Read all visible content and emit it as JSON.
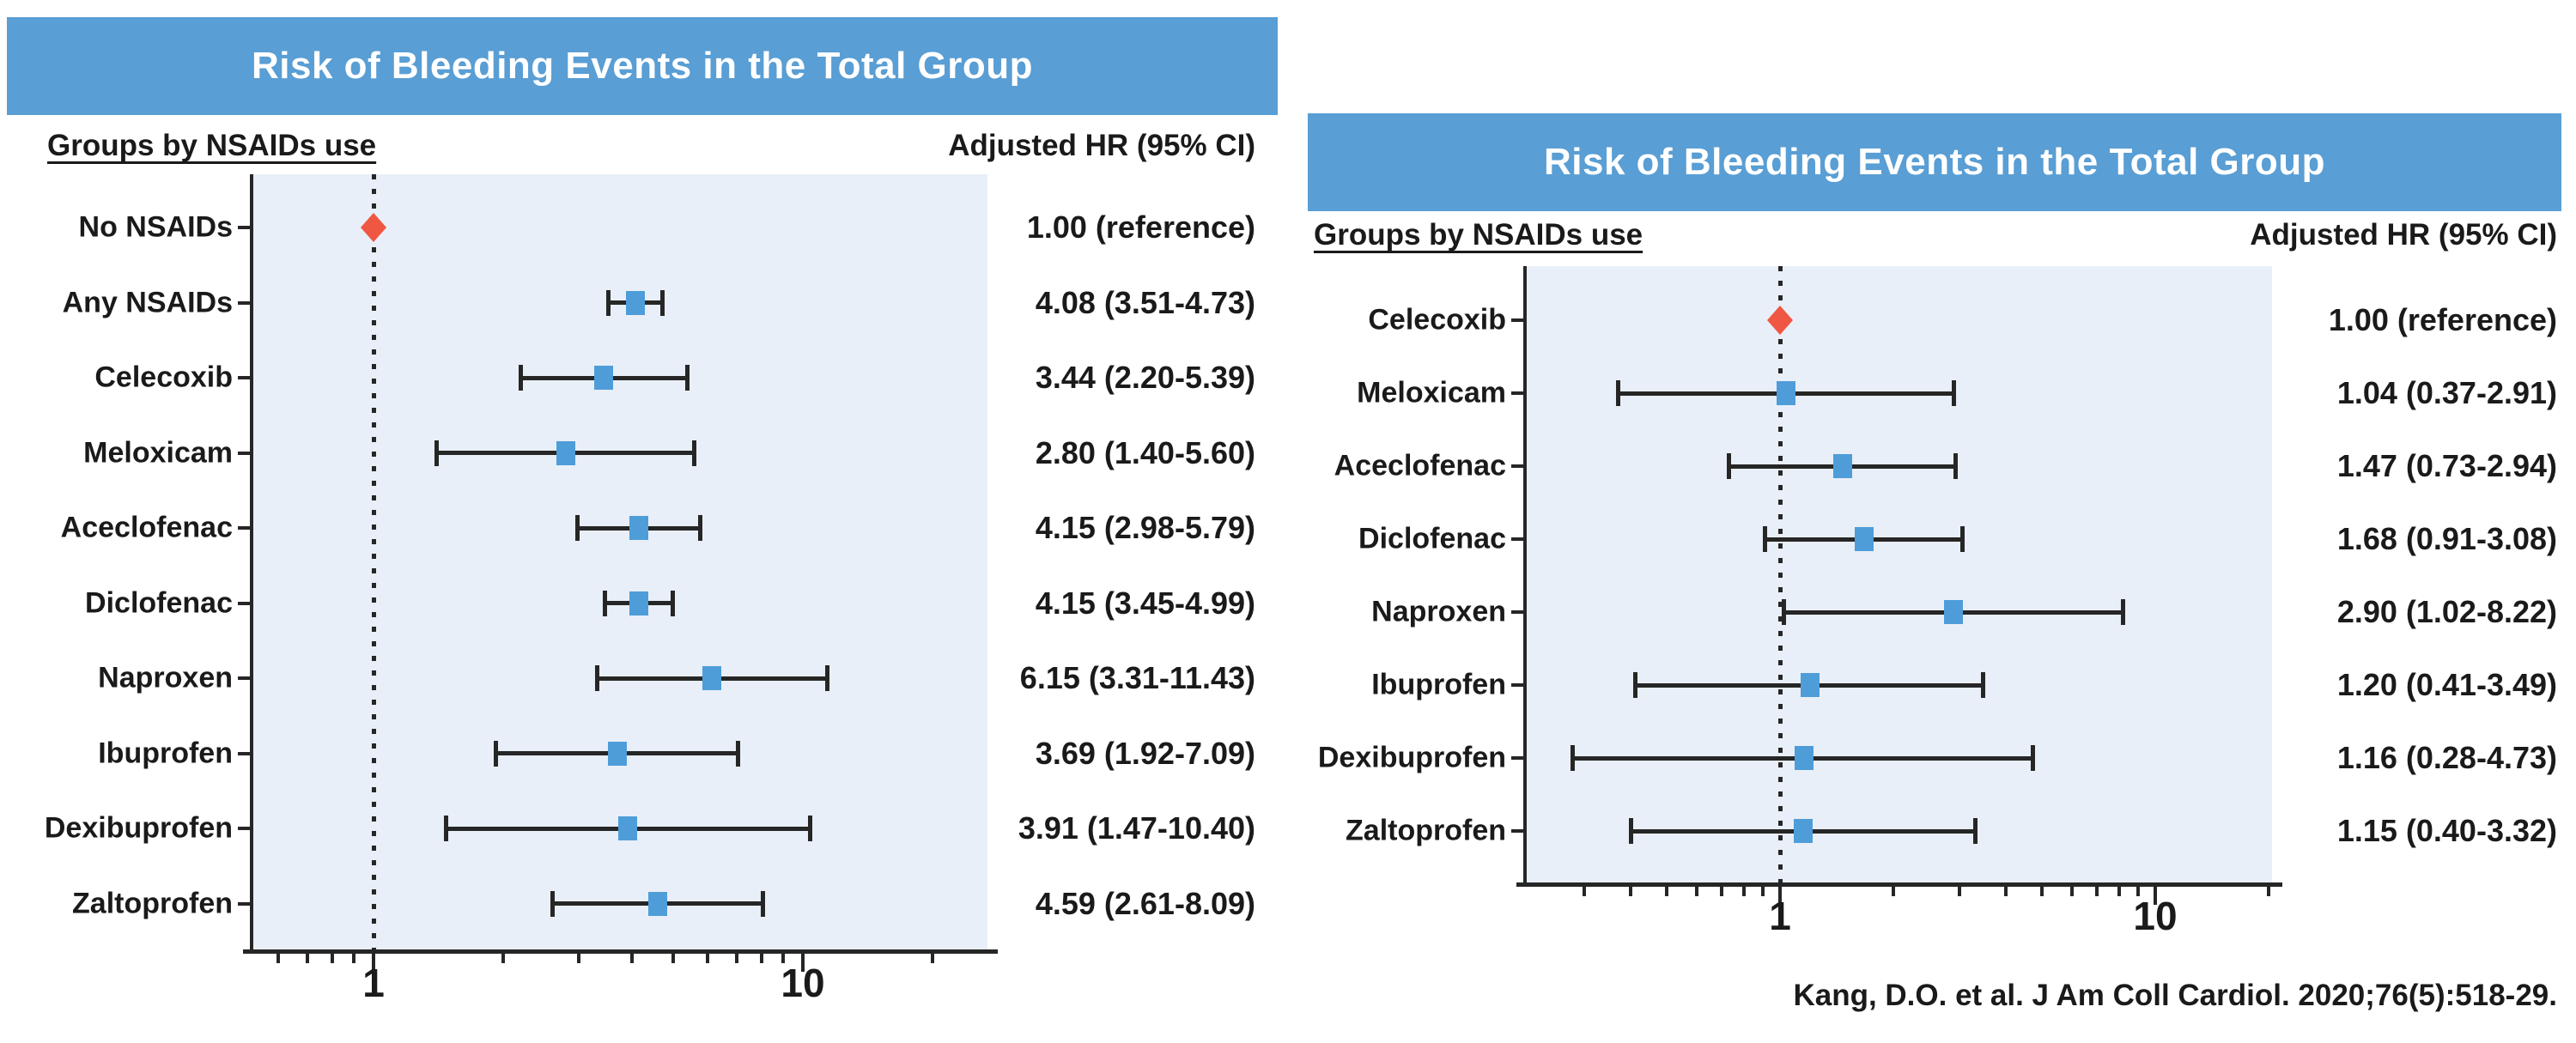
{
  "citation": "Kang, D.O. et al. J Am Coll Cardiol. 2020;76(5):518-29.",
  "colors": {
    "header_blue": "#599ED4",
    "plot_bg": "#E9EFF8",
    "marker_blue": "#4E9DD9",
    "marker_red": "#EF5743",
    "axis_dark": "#262626",
    "text_dark": "#1A1A1A"
  },
  "chart_data": [
    {
      "type": "forest",
      "panel": "left",
      "title": "Risk of Bleeding Events in the Total Group",
      "groups_header": "Groups by NSAIDs use",
      "hr_header": "Adjusted HR (95% CI)",
      "xscale": "log",
      "xlim": [
        0.56,
        25
      ],
      "x_major_ticks": [
        1,
        10
      ],
      "reference_line": 1,
      "rows": [
        {
          "label": "No NSAIDs",
          "hr": 1.0,
          "lo": null,
          "hi": null,
          "text": "1.00 (reference)",
          "marker": "diamond"
        },
        {
          "label": "Any NSAIDs",
          "hr": 4.08,
          "lo": 3.51,
          "hi": 4.73,
          "text": "4.08 (3.51-4.73)",
          "marker": "square"
        },
        {
          "label": "Celecoxib",
          "hr": 3.44,
          "lo": 2.2,
          "hi": 5.39,
          "text": "3.44 (2.20-5.39)",
          "marker": "square"
        },
        {
          "label": "Meloxicam",
          "hr": 2.8,
          "lo": 1.4,
          "hi": 5.6,
          "text": "2.80 (1.40-5.60)",
          "marker": "square"
        },
        {
          "label": "Aceclofenac",
          "hr": 4.15,
          "lo": 2.98,
          "hi": 5.79,
          "text": "4.15 (2.98-5.79)",
          "marker": "square"
        },
        {
          "label": "Diclofenac",
          "hr": 4.15,
          "lo": 3.45,
          "hi": 4.99,
          "text": "4.15 (3.45-4.99)",
          "marker": "square"
        },
        {
          "label": "Naproxen",
          "hr": 6.15,
          "lo": 3.31,
          "hi": 11.43,
          "text": "6.15 (3.31-11.43)",
          "marker": "square"
        },
        {
          "label": "Ibuprofen",
          "hr": 3.69,
          "lo": 1.92,
          "hi": 7.09,
          "text": "3.69 (1.92-7.09)",
          "marker": "square"
        },
        {
          "label": "Dexibuprofen",
          "hr": 3.91,
          "lo": 1.47,
          "hi": 10.4,
          "text": "3.91 (1.47-10.40)",
          "marker": "square"
        },
        {
          "label": "Zaltoprofen",
          "hr": 4.59,
          "lo": 2.61,
          "hi": 8.09,
          "text": "4.59 (2.61-8.09)",
          "marker": "square"
        }
      ]
    },
    {
      "type": "forest",
      "panel": "right",
      "title": "Risk of Bleeding Events in the Total Group",
      "groups_header": "Groups by NSAIDs use",
      "hr_header": "Adjusted HR (95% CI)",
      "xscale": "log",
      "xlim": [
        0.28,
        21
      ],
      "x_major_ticks": [
        1,
        10
      ],
      "reference_line": 1,
      "rows": [
        {
          "label": "Celecoxib",
          "hr": 1.0,
          "lo": null,
          "hi": null,
          "text": "1.00 (reference)",
          "marker": "diamond"
        },
        {
          "label": "Meloxicam",
          "hr": 1.04,
          "lo": 0.37,
          "hi": 2.91,
          "text": "1.04 (0.37-2.91)",
          "marker": "square"
        },
        {
          "label": "Aceclofenac",
          "hr": 1.47,
          "lo": 0.73,
          "hi": 2.94,
          "text": "1.47 (0.73-2.94)",
          "marker": "square"
        },
        {
          "label": "Diclofenac",
          "hr": 1.68,
          "lo": 0.91,
          "hi": 3.08,
          "text": "1.68 (0.91-3.08)",
          "marker": "square"
        },
        {
          "label": "Naproxen",
          "hr": 2.9,
          "lo": 1.02,
          "hi": 8.22,
          "text": "2.90 (1.02-8.22)",
          "marker": "square"
        },
        {
          "label": "Ibuprofen",
          "hr": 1.2,
          "lo": 0.41,
          "hi": 3.49,
          "text": "1.20 (0.41-3.49)",
          "marker": "square"
        },
        {
          "label": "Dexibuprofen",
          "hr": 1.16,
          "lo": 0.28,
          "hi": 4.73,
          "text": "1.16 (0.28-4.73)",
          "marker": "square"
        },
        {
          "label": "Zaltoprofen",
          "hr": 1.15,
          "lo": 0.4,
          "hi": 3.32,
          "text": "1.15 (0.40-3.32)",
          "marker": "square"
        }
      ]
    }
  ]
}
